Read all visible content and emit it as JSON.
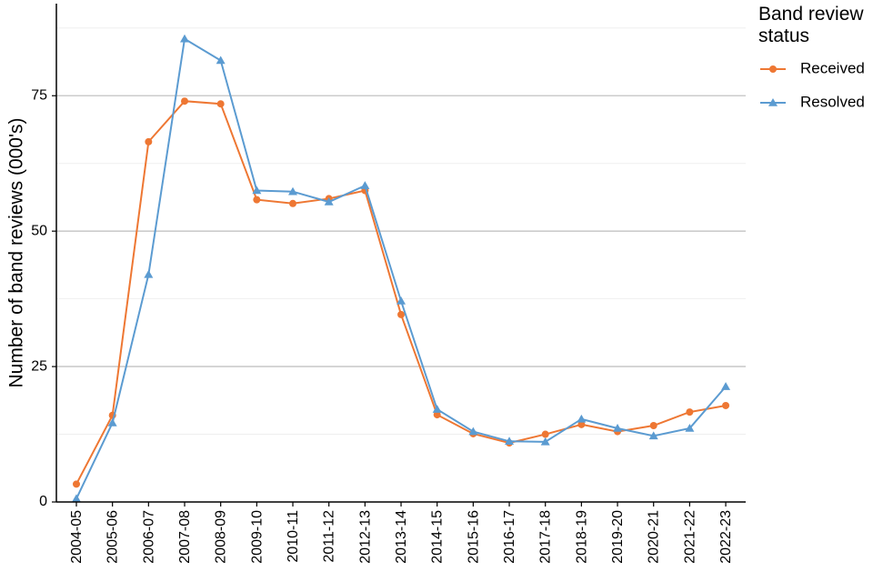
{
  "chart_data": {
    "type": "line",
    "title": "",
    "xlabel": "",
    "ylabel": "Number of band reviews (000's)",
    "ylim": [
      0,
      92
    ],
    "yticks": [
      0,
      25,
      50,
      75
    ],
    "grid": true,
    "legend_title": "Band review status",
    "legend_title_lines": [
      "Band review",
      "status"
    ],
    "legend_position": "top-right",
    "categories": [
      "2004-05",
      "2005-06",
      "2006-07",
      "2007-08",
      "2008-09",
      "2009-10",
      "2010-11",
      "2011-12",
      "2012-13",
      "2013-14",
      "2014-15",
      "2015-16",
      "2016-17",
      "2017-18",
      "2018-19",
      "2019-20",
      "2020-21",
      "2021-22",
      "2022-23"
    ],
    "series": [
      {
        "name": "Received",
        "color": "#ee7733",
        "marker": "circle",
        "values": [
          3.3,
          16.0,
          66.5,
          74.0,
          73.5,
          55.8,
          55.1,
          56.0,
          57.5,
          34.6,
          16.1,
          12.6,
          10.9,
          12.5,
          14.3,
          13.0,
          14.1,
          16.6,
          17.8
        ]
      },
      {
        "name": "Resolved",
        "color": "#5b9bd1",
        "marker": "triangle",
        "values": [
          0.6,
          14.6,
          42.0,
          85.5,
          81.5,
          57.5,
          57.3,
          55.4,
          58.4,
          37.1,
          17.1,
          13.0,
          11.2,
          11.1,
          15.3,
          13.6,
          12.2,
          13.6,
          21.3
        ]
      }
    ]
  }
}
